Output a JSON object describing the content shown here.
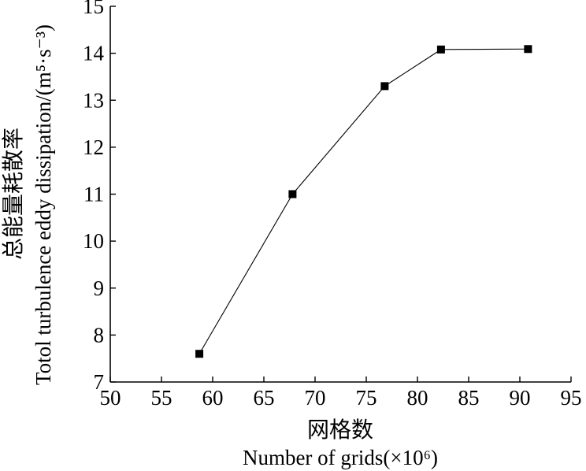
{
  "chart_data": {
    "type": "line",
    "x": [
      58.7,
      67.8,
      76.8,
      82.3,
      90.8
    ],
    "series": [
      {
        "values": [
          7.6,
          11.0,
          13.3,
          14.08,
          14.09
        ],
        "marker": "square",
        "color": "#000000"
      }
    ],
    "xlim": [
      50,
      95
    ],
    "ylim": [
      7,
      15
    ],
    "xticks": [
      50,
      55,
      60,
      65,
      70,
      75,
      80,
      85,
      90,
      95
    ],
    "yticks": [
      7,
      8,
      9,
      10,
      11,
      12,
      13,
      14,
      15
    ],
    "xlabel_cn": "网格数",
    "xlabel": "Number of grids(×10⁶)",
    "ylabel_cn": "总能量耗散率",
    "ylabel": "Totol turbulence eddy dissipation/(m⁵·s⁻³)",
    "grid": false,
    "legend": "none"
  }
}
